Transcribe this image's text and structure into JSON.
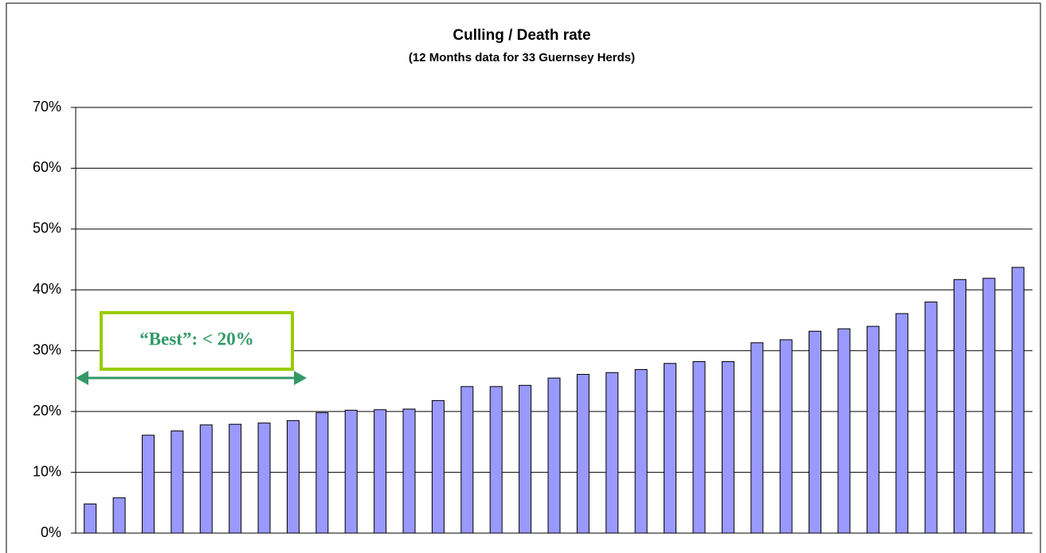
{
  "chart_data": {
    "type": "bar",
    "title": "Culling / Death rate",
    "subtitle": "(12 Months data for 33 Guernsey Herds)",
    "annotation": "“Best”: < 20%",
    "categories": [
      null,
      null,
      null,
      null,
      null,
      null,
      null,
      null,
      null,
      null,
      null,
      null,
      null,
      null,
      null,
      null,
      null,
      null,
      null,
      null,
      null,
      null,
      null,
      null,
      null,
      null,
      null,
      null,
      null,
      null,
      null,
      null,
      null
    ],
    "values": [
      4.8,
      5.8,
      16.1,
      16.8,
      17.8,
      17.9,
      18.1,
      18.5,
      19.8,
      20.2,
      20.3,
      20.4,
      21.8,
      24.1,
      24.1,
      24.3,
      25.5,
      26.1,
      26.4,
      26.9,
      27.9,
      28.2,
      28.2,
      31.3,
      31.8,
      33.2,
      33.6,
      34.0,
      36.1,
      38.0,
      41.7,
      41.9,
      43.7
    ],
    "color": "#9999ff",
    "ylim": [
      0,
      70
    ],
    "yticks": [
      {
        "value": 0,
        "label": "0%"
      },
      {
        "value": 10,
        "label": "10%"
      },
      {
        "value": 20,
        "label": "20%"
      },
      {
        "value": 30,
        "label": "30%"
      },
      {
        "value": 40,
        "label": "40%"
      },
      {
        "value": 50,
        "label": "50%"
      },
      {
        "value": 60,
        "label": "60%"
      },
      {
        "value": 70,
        "label": "70%"
      }
    ],
    "grid": true
  }
}
